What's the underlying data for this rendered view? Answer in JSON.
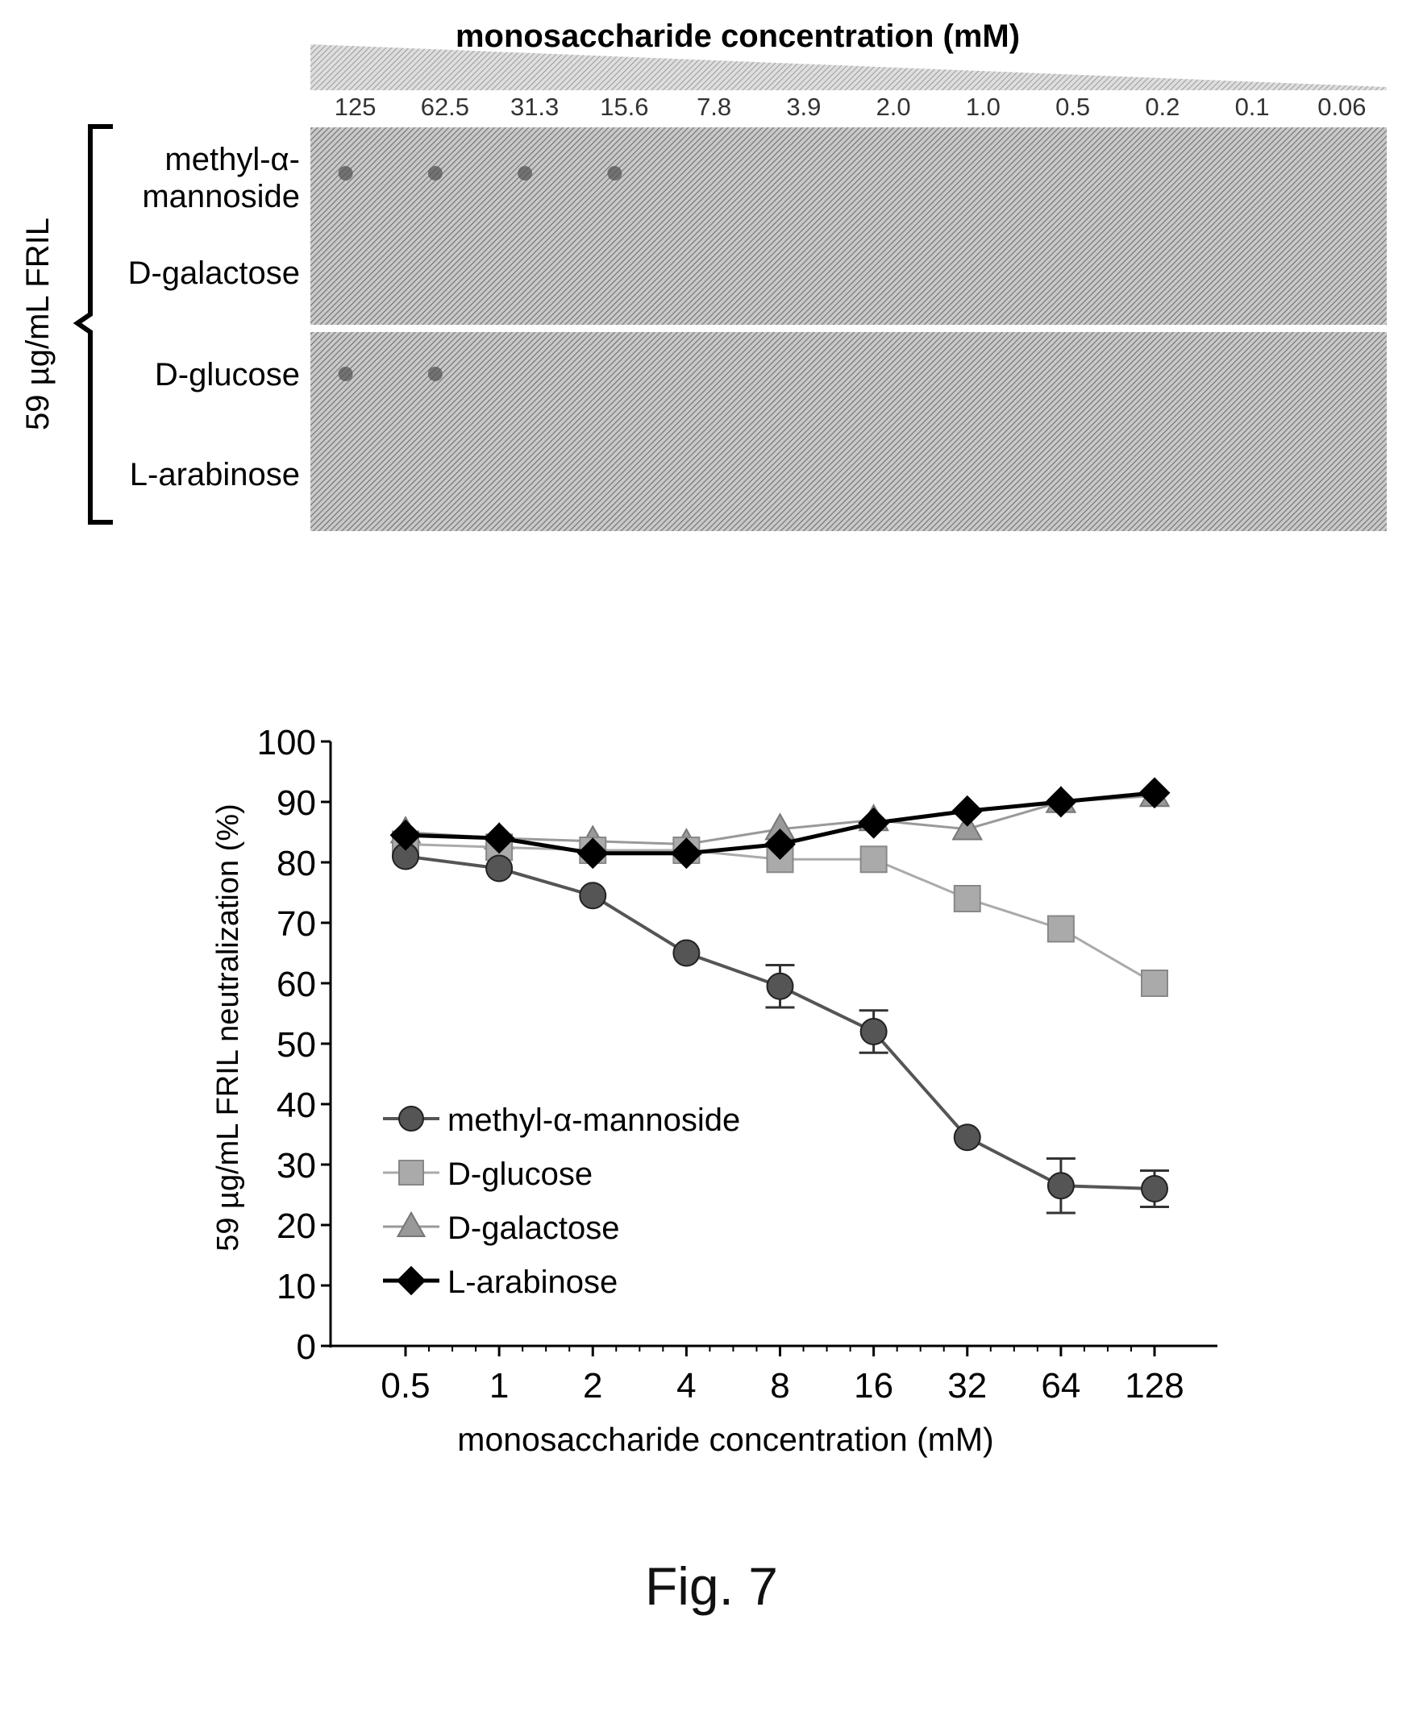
{
  "figure_label": "Fig. 7",
  "gel_panel": {
    "title": "monosaccharide concentration (mM)",
    "side_label": "59 µg/mL FRIL",
    "concentrations": [
      "125",
      "62.5",
      "31.3",
      "15.6",
      "7.8",
      "3.9",
      "2.0",
      "1.0",
      "0.5",
      "0.2",
      "0.1",
      "0.06"
    ],
    "rows": [
      {
        "label_lines": [
          "methyl-α-",
          "mannoside"
        ],
        "visible_spots": 4
      },
      {
        "label_lines": [
          "D-galactose"
        ],
        "visible_spots": 0
      },
      {
        "label_lines": [
          "D-glucose"
        ],
        "visible_spots": 2
      },
      {
        "label_lines": [
          "L-arabinose"
        ],
        "visible_spots": 0
      }
    ]
  },
  "chart_data": {
    "type": "line",
    "title": "",
    "xlabel": "monosaccharide concentration (mM)",
    "ylabel": "59 µg/mL FRIL neutralization (%)",
    "x_scale": "log2",
    "x": [
      "0.5",
      "1",
      "2",
      "4",
      "8",
      "16",
      "32",
      "64",
      "128"
    ],
    "ylim": [
      0,
      100
    ],
    "yticks": [
      "0",
      "10",
      "20",
      "30",
      "40",
      "50",
      "60",
      "70",
      "80",
      "90",
      "100"
    ],
    "grid": false,
    "legend_position": "lower-left",
    "series": [
      {
        "name": "methyl-α-mannoside",
        "marker": "circle",
        "color": "#555555",
        "values": [
          81,
          79,
          74.5,
          65,
          59.5,
          52,
          34.5,
          26.5,
          26
        ],
        "errors": [
          0,
          0,
          0,
          0,
          3.5,
          3.5,
          0,
          4.5,
          3
        ]
      },
      {
        "name": "D-glucose",
        "marker": "square",
        "color": "#aaaaaa",
        "values": [
          83,
          82.5,
          82,
          82,
          80.5,
          80.5,
          74,
          69,
          60
        ],
        "errors": [
          0,
          0,
          0,
          0,
          0,
          0,
          0,
          0,
          0
        ]
      },
      {
        "name": "D-galactose",
        "marker": "triangle",
        "color": "#999999",
        "values": [
          85,
          84,
          83.5,
          83,
          85.5,
          87,
          85.5,
          90,
          91
        ],
        "errors": [
          0,
          0,
          0,
          0,
          0,
          0,
          0,
          0,
          0
        ]
      },
      {
        "name": "L-arabinose",
        "marker": "diamond",
        "color": "#000000",
        "values": [
          84.5,
          84,
          81.5,
          81.5,
          83,
          86.5,
          88.5,
          90,
          91.5
        ],
        "errors": [
          0,
          0,
          0,
          0,
          0,
          0,
          0,
          0,
          0
        ]
      }
    ]
  }
}
